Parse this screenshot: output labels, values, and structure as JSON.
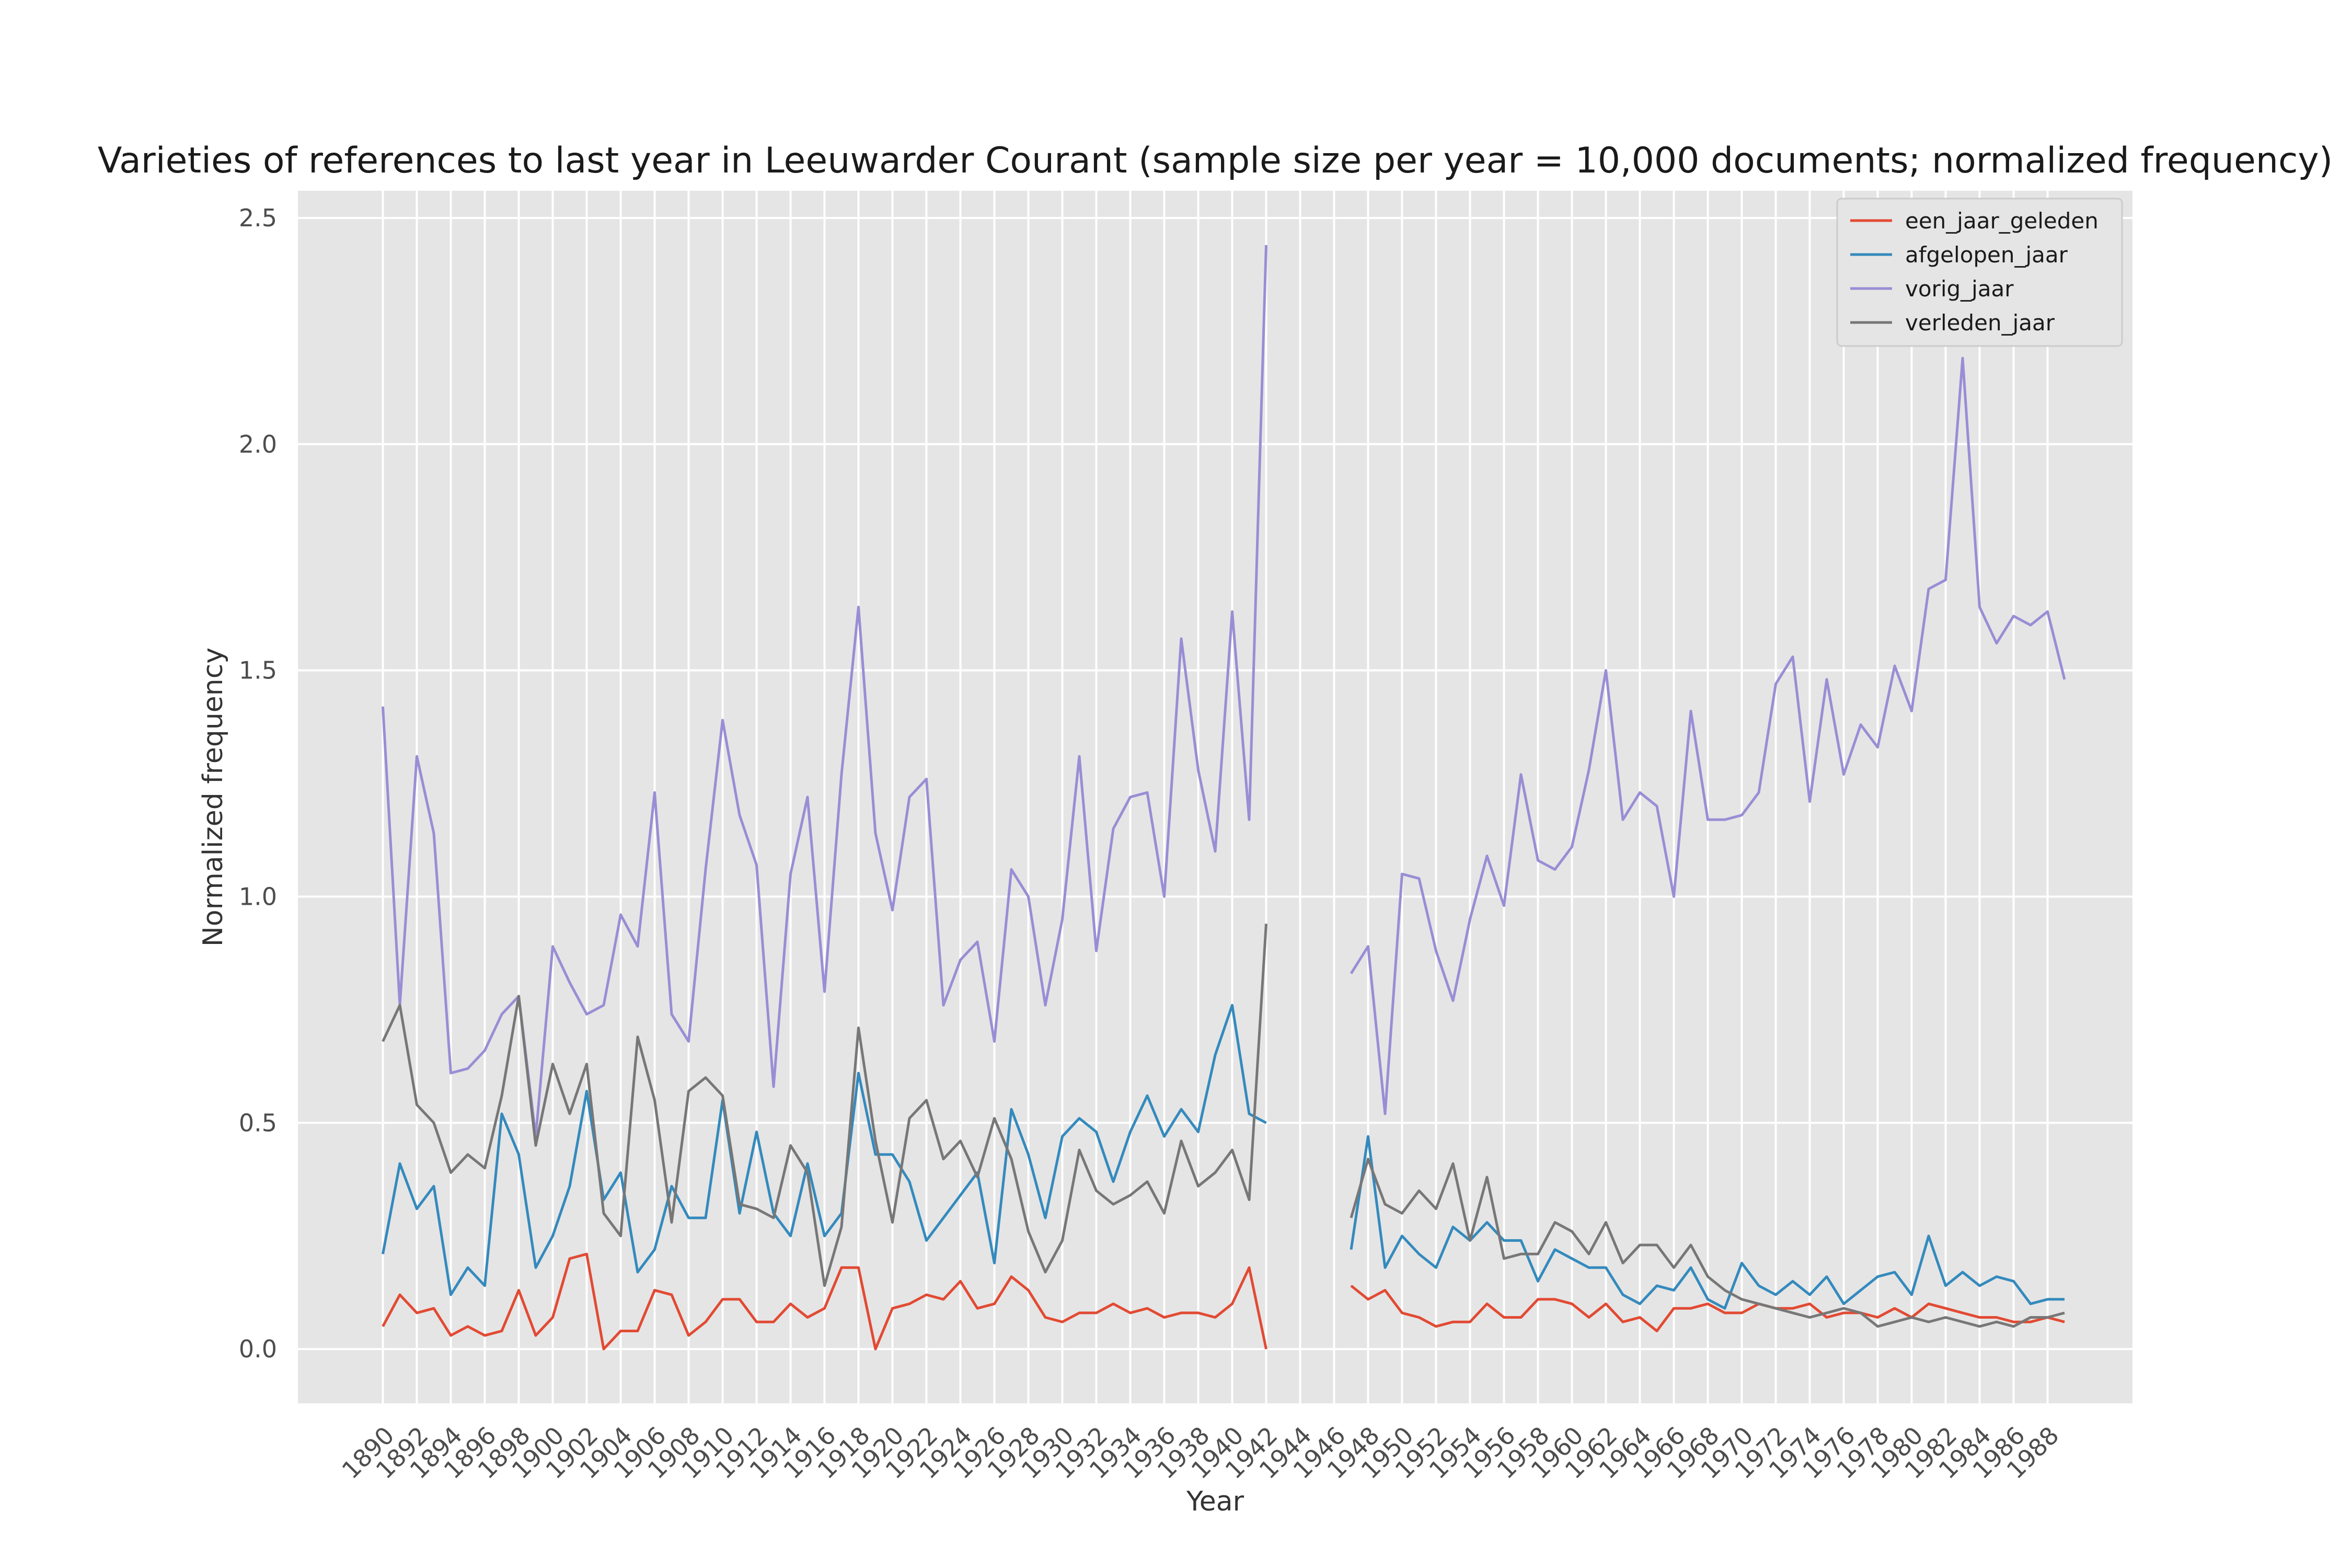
{
  "chart_data": {
    "type": "line",
    "title": "Varieties of references to last year in Leeuwarder Courant (sample size per year = 10,000 documents; normalized frequency)",
    "xlabel": "Year",
    "ylabel": "Normalized frequency",
    "xlim": [
      1885,
      1993
    ],
    "ylim": [
      -0.12,
      2.56
    ],
    "x_ticks": [
      1890,
      1892,
      1894,
      1896,
      1898,
      1900,
      1902,
      1904,
      1906,
      1908,
      1910,
      1912,
      1914,
      1916,
      1918,
      1920,
      1922,
      1924,
      1926,
      1928,
      1930,
      1932,
      1934,
      1936,
      1938,
      1940,
      1942,
      1944,
      1946,
      1948,
      1950,
      1952,
      1954,
      1956,
      1958,
      1960,
      1962,
      1964,
      1966,
      1968,
      1970,
      1972,
      1974,
      1976,
      1978,
      1980,
      1982,
      1984,
      1986,
      1988
    ],
    "y_ticks": [
      "0.0",
      "0.5",
      "1.0",
      "1.5",
      "2.0",
      "2.5"
    ],
    "y_tick_values": [
      0,
      0.5,
      1.0,
      1.5,
      2.0,
      2.5
    ],
    "grid": true,
    "legend_position": "top-right",
    "x": [
      1890,
      1891,
      1892,
      1893,
      1894,
      1895,
      1896,
      1897,
      1898,
      1899,
      1900,
      1901,
      1902,
      1903,
      1904,
      1905,
      1906,
      1907,
      1908,
      1909,
      1910,
      1911,
      1912,
      1913,
      1914,
      1915,
      1916,
      1917,
      1918,
      1919,
      1920,
      1921,
      1922,
      1923,
      1924,
      1925,
      1926,
      1927,
      1928,
      1929,
      1930,
      1931,
      1932,
      1933,
      1934,
      1935,
      1936,
      1937,
      1938,
      1939,
      1940,
      1941,
      1942,
      1943,
      1944,
      1945,
      1946,
      1947,
      1948,
      1949,
      1950,
      1951,
      1952,
      1953,
      1954,
      1955,
      1956,
      1957,
      1958,
      1959,
      1960,
      1961,
      1962,
      1963,
      1964,
      1965,
      1966,
      1967,
      1968,
      1969,
      1970,
      1971,
      1972,
      1973,
      1974,
      1975,
      1976,
      1977,
      1978,
      1979,
      1980,
      1981,
      1982,
      1983,
      1984,
      1985,
      1986,
      1987,
      1988,
      1989
    ],
    "series": [
      {
        "name": "een_jaar_geleden",
        "color": "#e24a33",
        "values": [
          0.05,
          0.12,
          0.08,
          0.09,
          0.03,
          0.05,
          0.03,
          0.04,
          0.13,
          0.03,
          0.07,
          0.2,
          0.21,
          0.0,
          0.04,
          0.04,
          0.13,
          0.12,
          0.03,
          0.06,
          0.11,
          0.11,
          0.06,
          0.06,
          0.1,
          0.07,
          0.09,
          0.18,
          0.18,
          0.0,
          0.09,
          0.1,
          0.12,
          0.11,
          0.15,
          0.09,
          0.1,
          0.16,
          0.13,
          0.07,
          0.06,
          0.08,
          0.08,
          0.1,
          0.08,
          0.09,
          0.07,
          0.08,
          0.08,
          0.07,
          0.1,
          0.18,
          0.0,
          null,
          null,
          null,
          null,
          0.14,
          0.11,
          0.13,
          0.08,
          0.07,
          0.05,
          0.06,
          0.06,
          0.1,
          0.07,
          0.07,
          0.11,
          0.11,
          0.1,
          0.07,
          0.1,
          0.06,
          0.07,
          0.04,
          0.09,
          0.09,
          0.1,
          0.08,
          0.08,
          0.1,
          0.09,
          0.09,
          0.1,
          0.07,
          0.08,
          0.08,
          0.07,
          0.09,
          0.07,
          0.1,
          0.09,
          0.08,
          0.07,
          0.07,
          0.06,
          0.06,
          0.07,
          0.06
        ]
      },
      {
        "name": "afgelopen_jaar",
        "color": "#348abd",
        "values": [
          0.21,
          0.41,
          0.31,
          0.36,
          0.12,
          0.18,
          0.14,
          0.52,
          0.43,
          0.18,
          0.25,
          0.36,
          0.57,
          0.33,
          0.39,
          0.17,
          0.22,
          0.36,
          0.29,
          0.29,
          0.55,
          0.3,
          0.48,
          0.3,
          0.25,
          0.41,
          0.25,
          0.3,
          0.61,
          0.43,
          0.43,
          0.37,
          0.24,
          0.29,
          0.34,
          0.39,
          0.19,
          0.53,
          0.43,
          0.29,
          0.47,
          0.51,
          0.48,
          0.37,
          0.48,
          0.56,
          0.47,
          0.53,
          0.48,
          0.65,
          0.76,
          0.52,
          0.5,
          null,
          null,
          null,
          null,
          0.22,
          0.47,
          0.18,
          0.25,
          0.21,
          0.18,
          0.27,
          0.24,
          0.28,
          0.24,
          0.24,
          0.15,
          0.22,
          0.2,
          0.18,
          0.18,
          0.12,
          0.1,
          0.14,
          0.13,
          0.18,
          0.11,
          0.09,
          0.19,
          0.14,
          0.12,
          0.15,
          0.12,
          0.16,
          0.1,
          0.13,
          0.16,
          0.17,
          0.12,
          0.25,
          0.14,
          0.17,
          0.14,
          0.16,
          0.15,
          0.1,
          0.11,
          0.11
        ]
      },
      {
        "name": "vorig_jaar",
        "color": "#988ed5",
        "values": [
          1.42,
          0.76,
          1.31,
          1.14,
          0.61,
          0.62,
          0.66,
          0.74,
          0.78,
          0.47,
          0.89,
          0.81,
          0.74,
          0.76,
          0.96,
          0.89,
          1.23,
          0.74,
          0.68,
          1.06,
          1.39,
          1.18,
          1.07,
          0.58,
          1.05,
          1.22,
          0.79,
          1.27,
          1.64,
          1.14,
          0.97,
          1.22,
          1.26,
          0.76,
          0.86,
          0.9,
          0.68,
          1.06,
          1.0,
          0.76,
          0.95,
          1.31,
          0.88,
          1.15,
          1.22,
          1.23,
          1.0,
          1.57,
          1.28,
          1.1,
          1.63,
          1.17,
          2.44,
          null,
          null,
          null,
          null,
          0.83,
          0.89,
          0.52,
          1.05,
          1.04,
          0.88,
          0.77,
          0.95,
          1.09,
          0.98,
          1.27,
          1.08,
          1.06,
          1.11,
          1.28,
          1.5,
          1.17,
          1.23,
          1.2,
          1.0,
          1.41,
          1.17,
          1.17,
          1.18,
          1.23,
          1.47,
          1.53,
          1.21,
          1.48,
          1.27,
          1.38,
          1.33,
          1.51,
          1.41,
          1.68,
          1.7,
          2.19,
          1.64,
          1.56,
          1.62,
          1.6,
          1.63,
          1.48
        ]
      },
      {
        "name": "verleden_jaar",
        "color": "#777777",
        "values": [
          0.68,
          0.76,
          0.54,
          0.5,
          0.39,
          0.43,
          0.4,
          0.56,
          0.78,
          0.45,
          0.63,
          0.52,
          0.63,
          0.3,
          0.25,
          0.69,
          0.55,
          0.28,
          0.57,
          0.6,
          0.56,
          0.32,
          0.31,
          0.29,
          0.45,
          0.39,
          0.14,
          0.27,
          0.71,
          0.46,
          0.28,
          0.51,
          0.55,
          0.42,
          0.46,
          0.38,
          0.51,
          0.42,
          0.26,
          0.17,
          0.24,
          0.44,
          0.35,
          0.32,
          0.34,
          0.37,
          0.3,
          0.46,
          0.36,
          0.39,
          0.44,
          0.33,
          0.94,
          null,
          null,
          null,
          null,
          0.29,
          0.42,
          0.32,
          0.3,
          0.35,
          0.31,
          0.41,
          0.24,
          0.38,
          0.2,
          0.21,
          0.21,
          0.28,
          0.26,
          0.21,
          0.28,
          0.19,
          0.23,
          0.23,
          0.18,
          0.23,
          0.16,
          0.13,
          0.11,
          0.1,
          0.09,
          0.08,
          0.07,
          0.08,
          0.09,
          0.08,
          0.05,
          0.06,
          0.07,
          0.06,
          0.07,
          0.06,
          0.05,
          0.06,
          0.05,
          0.07,
          0.07,
          0.08
        ]
      }
    ]
  }
}
